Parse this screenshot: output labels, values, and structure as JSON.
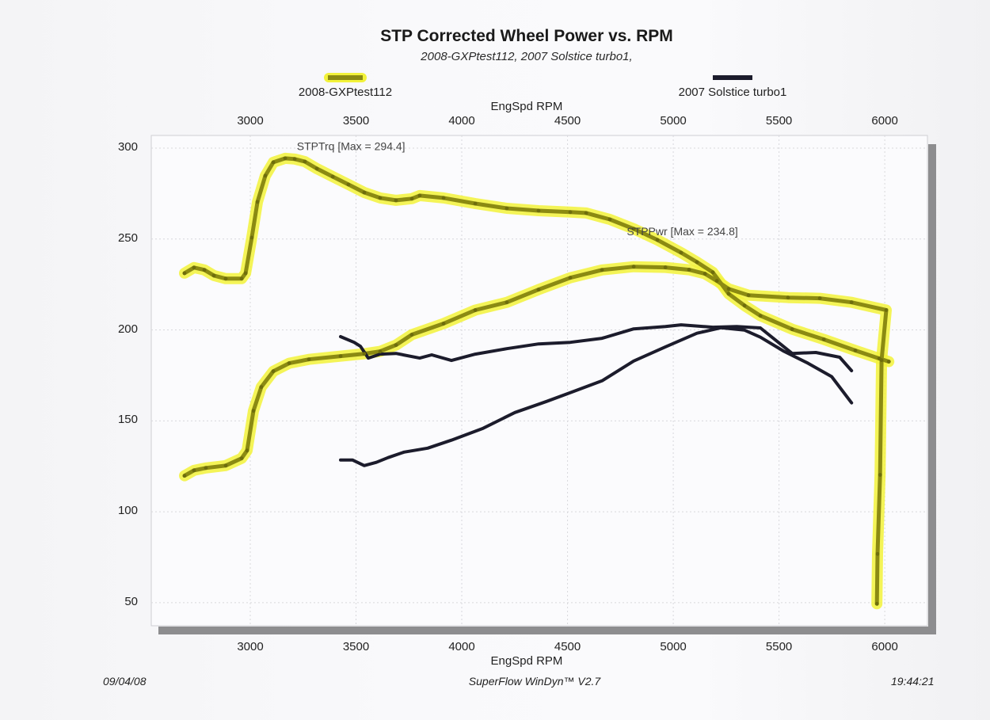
{
  "chart_data": {
    "type": "line",
    "title": "STP Corrected Wheel Power vs. RPM",
    "subtitle": "2008-GXPtest112, 2007 Solstice turbo1,",
    "xlabel": "EngSpd  RPM",
    "ylabel": "",
    "xlim": [
      2690,
      6270
    ],
    "ylim": [
      39,
      307
    ],
    "x_ticks": [
      "3000",
      "3500",
      "4000",
      "4500",
      "5000",
      "5500",
      "6000"
    ],
    "y_ticks": [
      "300",
      "250",
      "200",
      "150",
      "100",
      "50"
    ],
    "grid": true,
    "legend_position": "top",
    "legend": [
      {
        "name": "2008-GXPtest112",
        "color": "#8b8a12",
        "highlight": "#f2f23a"
      },
      {
        "name": "2007 Solstice turbo1",
        "color": "#1c1c2c"
      }
    ],
    "annotations": [
      {
        "text": "STPTrq [Max = 294.4]",
        "x": 3220,
        "y": 299
      },
      {
        "text": "STPPwr [Max = 234.8]",
        "x": 4780,
        "y": 252
      }
    ],
    "series": [
      {
        "name": "2008-GXPtest112 STPTrq",
        "legend": "2008-GXPtest112",
        "x": [
          2689,
          2734,
          2783,
          2828,
          2884,
          2959,
          2978,
          3007,
          3034,
          3071,
          3109,
          3165,
          3210,
          3258,
          3315,
          3390,
          3464,
          3539,
          3614,
          3689,
          3764,
          3801,
          3914,
          4064,
          4213,
          4363,
          4513,
          4588,
          4700,
          4813,
          4925,
          5037,
          5112,
          5187,
          5262,
          5337,
          5412,
          5562,
          5712,
          5861,
          5974,
          6019
        ],
        "y": [
          231.2,
          234.3,
          233.0,
          229.9,
          228.2,
          228.2,
          231.2,
          250.8,
          270.4,
          284.8,
          292.2,
          294.4,
          294.0,
          292.6,
          288.7,
          284.3,
          280.0,
          275.6,
          272.6,
          271.3,
          272.2,
          273.9,
          272.6,
          269.5,
          266.9,
          265.6,
          264.8,
          264.3,
          260.8,
          255.6,
          249.5,
          242.5,
          237.3,
          231.7,
          219.9,
          213.4,
          207.8,
          200.4,
          194.8,
          188.7,
          184.3,
          182.6
        ]
      },
      {
        "name": "2008-GXPtest112 STPPwr",
        "legend": "2008-GXPtest112",
        "x": [
          2689,
          2734,
          2790,
          2884,
          2959,
          2985,
          3015,
          3052,
          3109,
          3184,
          3277,
          3427,
          3539,
          3614,
          3689,
          3764,
          3914,
          4064,
          4213,
          4363,
          4513,
          4663,
          4813,
          4963,
          5075,
          5150,
          5206,
          5262,
          5356,
          5543,
          5693,
          5843,
          6007,
          5985,
          5978,
          5966,
          5963
        ],
        "y": [
          119.8,
          122.8,
          124.1,
          125.4,
          129.4,
          133.7,
          155.5,
          168.6,
          177.3,
          181.7,
          183.8,
          185.6,
          186.9,
          188.2,
          191.7,
          197.4,
          203.5,
          210.9,
          215.2,
          222.2,
          228.7,
          233.0,
          234.8,
          234.4,
          233.1,
          230.9,
          227.0,
          222.6,
          219.1,
          217.8,
          217.4,
          215.2,
          210.9,
          183.4,
          120.3,
          76.8,
          49.4
        ]
      },
      {
        "name": "2007 Solstice turbo1 STPTrq",
        "legend": "2007 Solstice turbo1",
        "x": [
          3427,
          3491,
          3521,
          3558,
          3614,
          3689,
          3801,
          3858,
          3951,
          4064,
          4213,
          4363,
          4513,
          4663,
          4813,
          4963,
          5037,
          5187,
          5300,
          5412,
          5487,
          5562,
          5674,
          5787,
          5843
        ],
        "y": [
          196.3,
          193.2,
          191.0,
          184.5,
          186.7,
          187.1,
          184.5,
          186.3,
          183.2,
          186.7,
          189.7,
          192.3,
          193.2,
          195.4,
          200.6,
          201.9,
          202.8,
          201.5,
          201.9,
          201.1,
          194.1,
          187.1,
          187.6,
          185.0,
          177.6
        ]
      },
      {
        "name": "2007 Solstice turbo1 STPPwr",
        "legend": "2007 Solstice turbo1",
        "x": [
          3427,
          3483,
          3539,
          3596,
          3652,
          3727,
          3839,
          3951,
          4101,
          4251,
          4401,
          4513,
          4663,
          4813,
          4963,
          5112,
          5225,
          5337,
          5412,
          5524,
          5637,
          5749,
          5843
        ],
        "y": [
          128.5,
          128.5,
          125.4,
          127.2,
          129.8,
          132.8,
          135.0,
          139.4,
          145.9,
          154.6,
          160.7,
          165.5,
          172.0,
          182.9,
          190.7,
          198.2,
          201.2,
          199.9,
          196.0,
          188.2,
          181.7,
          174.3,
          159.9
        ]
      }
    ]
  },
  "footer": {
    "date": "09/04/08",
    "software": "SuperFlow WinDyn™ V2.7",
    "time": "19:44:21"
  }
}
